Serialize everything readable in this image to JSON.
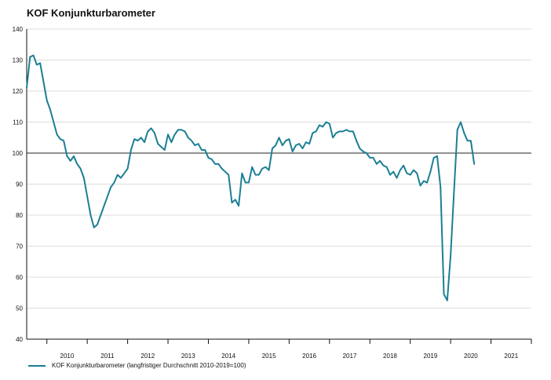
{
  "chart_data": {
    "type": "line",
    "title": "KOF Konjunkturbarometer",
    "xlabel": "",
    "ylabel": "",
    "ylim": [
      40,
      140
    ],
    "y_ticks": [
      40,
      50,
      60,
      70,
      80,
      90,
      100,
      110,
      120,
      130,
      140
    ],
    "x_tick_labels": [
      "2010",
      "2011",
      "2012",
      "2013",
      "2014",
      "2015",
      "2016",
      "2017",
      "2018",
      "2019",
      "2020",
      "2021"
    ],
    "grid": "horizontal",
    "reference_line": 100,
    "legend_position": "bottom-left",
    "series": [
      {
        "name": "KOF Konjunkturbarometer (langfristiger Durchschnitt 2010-2019=100)",
        "color": "#1b7f94",
        "start": "2009-07",
        "frequency": "monthly",
        "values": [
          121,
          131,
          131.5,
          128.5,
          129,
          123,
          117,
          114,
          110,
          106,
          104.5,
          104,
          99,
          97.5,
          99,
          96.5,
          95,
          92,
          86,
          80,
          76,
          77,
          80,
          83,
          86,
          89,
          90.5,
          93,
          92,
          93.5,
          95,
          101,
          104.5,
          104,
          105,
          103.5,
          107,
          108,
          106.5,
          103,
          102,
          101,
          106,
          103.5,
          106,
          107.5,
          107.5,
          107,
          105,
          104,
          102.5,
          103,
          101,
          101,
          98.5,
          98,
          96.5,
          96.5,
          95,
          94,
          93,
          84,
          85,
          83,
          93.5,
          90.5,
          90.5,
          95.5,
          93,
          93,
          95,
          95.5,
          94.5,
          101.5,
          102.5,
          105,
          102.5,
          104,
          104.5,
          100.5,
          102.5,
          103,
          101.5,
          103.5,
          103,
          106.5,
          107,
          109,
          108.5,
          110,
          109.5,
          105,
          106.5,
          107,
          107,
          107.5,
          107,
          107,
          104,
          101.5,
          100.5,
          100,
          98.5,
          98.5,
          96.5,
          97.5,
          96,
          95.5,
          93,
          94,
          92,
          94.5,
          96,
          93.5,
          93,
          94.5,
          93.5,
          89.5,
          91,
          90.5,
          94,
          98.5,
          99,
          89,
          54.5,
          52.5,
          67,
          87.5,
          107.5,
          110,
          106.5,
          104,
          104,
          96.5
        ]
      }
    ]
  }
}
